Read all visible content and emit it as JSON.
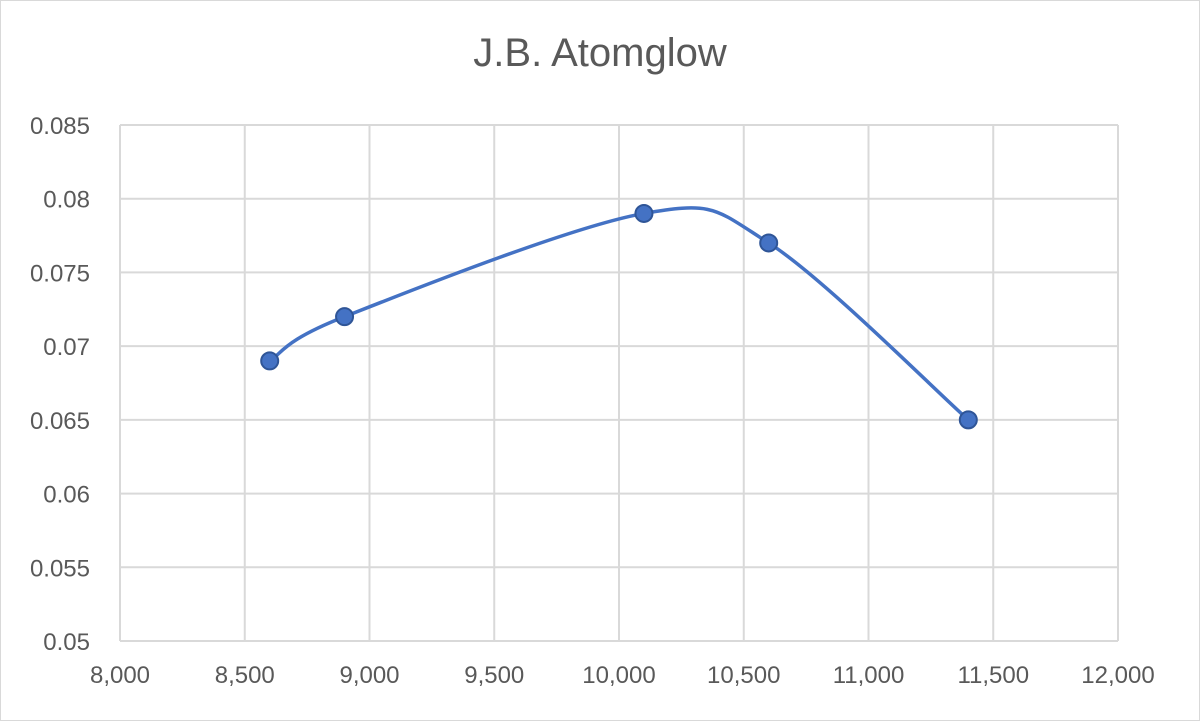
{
  "chart_data": {
    "type": "scatter",
    "title": "J.B. Atomglow",
    "xlabel": "",
    "ylabel": "",
    "xlim": [
      8000,
      12000
    ],
    "ylim": [
      0.05,
      0.085
    ],
    "x_ticks": [
      8000,
      8500,
      9000,
      9500,
      10000,
      10500,
      11000,
      11500,
      12000
    ],
    "x_tick_labels": [
      "8,000",
      "8,500",
      "9,000",
      "9,500",
      "10,000",
      "10,500",
      "11,000",
      "11,500",
      "12,000"
    ],
    "y_ticks": [
      0.05,
      0.055,
      0.06,
      0.065,
      0.07,
      0.075,
      0.08,
      0.085
    ],
    "y_tick_labels": [
      "0.05",
      "0.055",
      "0.06",
      "0.065",
      "0.07",
      "0.075",
      "0.08",
      "0.085"
    ],
    "grid": true,
    "legend": "none",
    "smooth_line": true,
    "series": [
      {
        "color": "#4472C4",
        "points": [
          {
            "x": 8600,
            "y": 0.069
          },
          {
            "x": 8900,
            "y": 0.072
          },
          {
            "x": 10100,
            "y": 0.079
          },
          {
            "x": 10600,
            "y": 0.077
          },
          {
            "x": 11400,
            "y": 0.065
          }
        ]
      }
    ],
    "colors": {
      "series": "#4472C4",
      "marker_edge": "#2F5597",
      "grid": "#d9d9d9",
      "text": "#595959"
    }
  }
}
